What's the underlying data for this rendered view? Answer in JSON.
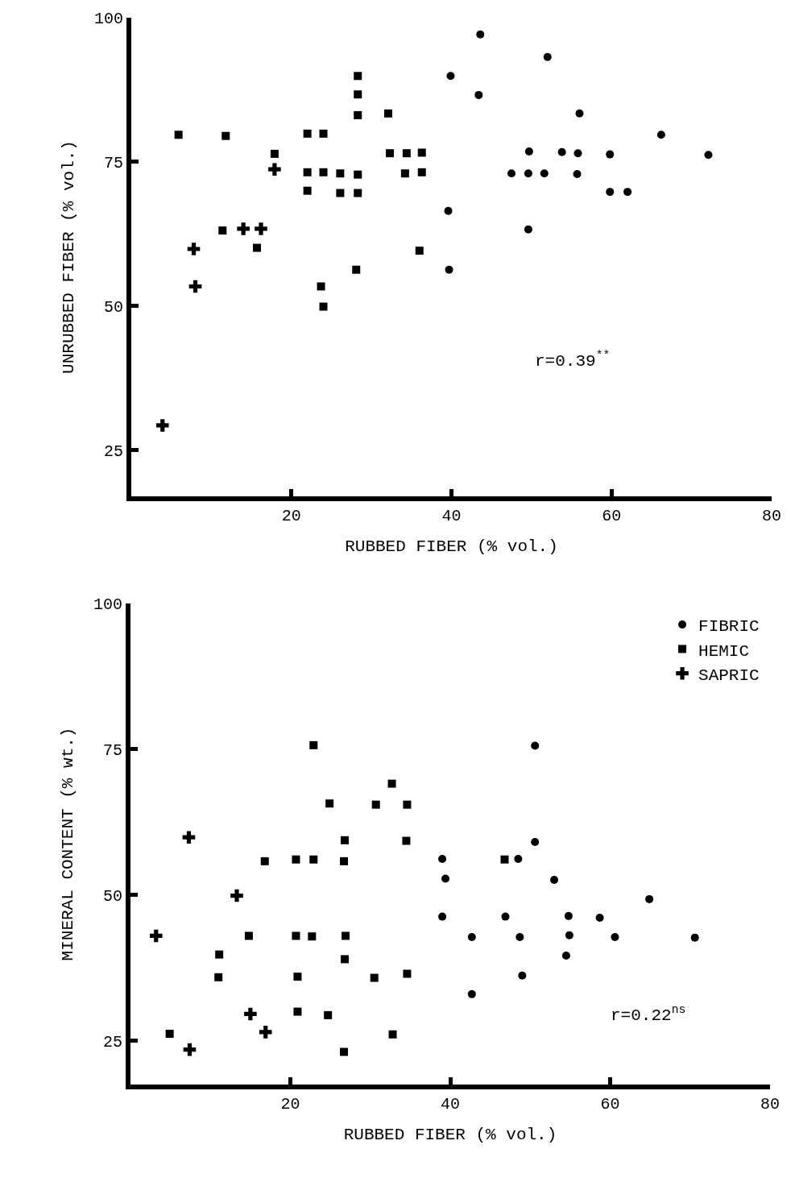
{
  "chart_data": [
    {
      "type": "scatter",
      "xlabel": "RUBBED FIBER (% vol.)",
      "ylabel": "UNRUBBED FIBER (% vol.)",
      "xlim": [
        0,
        80
      ],
      "xticks": [
        20,
        40,
        60,
        80
      ],
      "ylim": [
        17,
        100
      ],
      "yticks": [
        25,
        50,
        75,
        100
      ],
      "grid": false,
      "legend": false,
      "annotations": [
        "r=0.39$^{**}$"
      ],
      "series": [
        {
          "color": "#000000",
          "marker": "circle",
          "x": [
            43.6,
            52.0,
            39.9,
            43.4,
            56.0,
            66.2,
            49.7,
            53.8,
            55.8,
            59.8,
            72.1,
            47.5,
            49.6,
            51.6,
            55.7,
            59.8,
            62.0,
            39.6,
            49.6,
            39.7
          ],
          "values": [
            97.1,
            93.2,
            89.9,
            86.6,
            83.4,
            79.7,
            76.8,
            76.7,
            76.5,
            76.3,
            76.2,
            73.0,
            73.0,
            73.0,
            72.9,
            69.8,
            69.8,
            66.5,
            63.3,
            56.3
          ]
        },
        {
          "color": "#000000",
          "marker": "square",
          "x": [
            5.9,
            11.8,
            17.9,
            22.0,
            24.0,
            28.3,
            28.3,
            28.3,
            32.1,
            22.0,
            24.0,
            26.1,
            28.3,
            22.0,
            26.1,
            28.3,
            32.3,
            34.4,
            36.3,
            34.2,
            36.3,
            11.4,
            15.7,
            36.0,
            28.1,
            23.7,
            24.0
          ],
          "values": [
            79.7,
            79.5,
            76.4,
            79.9,
            79.9,
            89.9,
            86.7,
            83.1,
            83.4,
            73.2,
            73.2,
            73.0,
            72.8,
            70.0,
            69.6,
            69.6,
            76.5,
            76.5,
            76.6,
            73.0,
            73.2,
            63.1,
            60.1,
            59.6,
            56.3,
            53.4,
            49.9
          ]
        },
        {
          "color": "#000000",
          "marker": "cross",
          "x": [
            17.9,
            14.0,
            16.2,
            7.8,
            8.0,
            3.9
          ],
          "values": [
            73.7,
            63.4,
            63.4,
            59.9,
            53.4,
            29.3
          ]
        }
      ]
    },
    {
      "type": "scatter",
      "xlabel": "RUBBED FIBER (% vol.)",
      "ylabel": "MINERAL CONTENT (% wt.)",
      "xlim": [
        0,
        80
      ],
      "xticks": [
        20,
        40,
        60,
        80
      ],
      "ylim": [
        17.5,
        100
      ],
      "yticks": [
        25,
        50,
        75,
        100
      ],
      "grid": false,
      "legend": "top right",
      "annotations": [
        "r=0.22$^{ns}$"
      ],
      "series": [
        {
          "name": "FIBRIC",
          "color": "#000000",
          "marker": "circle",
          "x": [
            50.6,
            50.6,
            39.0,
            48.5,
            39.4,
            53.0,
            64.9,
            39.0,
            46.9,
            54.8,
            58.7,
            42.7,
            48.7,
            54.9,
            60.6,
            70.6,
            54.5,
            49.0,
            42.7
          ],
          "values": [
            75.6,
            59.1,
            56.2,
            56.2,
            52.8,
            52.6,
            49.3,
            46.3,
            46.3,
            46.4,
            46.1,
            42.8,
            42.8,
            43.1,
            42.8,
            42.7,
            39.6,
            36.2,
            33.0
          ]
        },
        {
          "name": "HEMIC",
          "color": "#000000",
          "marker": "square",
          "x": [
            22.9,
            24.9,
            30.7,
            32.7,
            34.6,
            26.8,
            34.5,
            16.8,
            20.7,
            22.9,
            26.7,
            46.8,
            14.8,
            20.7,
            22.7,
            26.9,
            11.1,
            26.8,
            11.0,
            20.9,
            30.5,
            34.6,
            20.9,
            24.7,
            4.9,
            32.8,
            26.7
          ],
          "values": [
            75.7,
            65.7,
            65.5,
            69.1,
            65.5,
            59.4,
            59.3,
            55.8,
            56.1,
            56.1,
            55.8,
            56.1,
            43.0,
            43.0,
            42.9,
            43.0,
            39.8,
            39.0,
            35.9,
            36.0,
            35.8,
            36.5,
            30.0,
            29.4,
            26.2,
            26.1,
            23.1
          ]
        },
        {
          "name": "SAPRIC",
          "color": "#000000",
          "marker": "cross",
          "x": [
            7.3,
            13.3,
            3.2,
            15.0,
            16.9,
            7.4
          ],
          "values": [
            59.9,
            49.9,
            43.0,
            29.6,
            26.5,
            23.5
          ]
        }
      ]
    }
  ]
}
